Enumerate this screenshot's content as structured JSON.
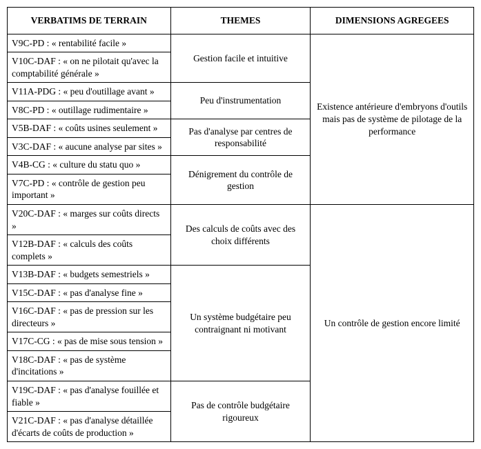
{
  "headers": {
    "col1": "VERBATIMS DE TERRAIN",
    "col2": "THEMES",
    "col3": "DIMENSIONS AGREGEES"
  },
  "rows": {
    "v9c": "V9C-PD : « rentabilité facile »",
    "v10c": "V10C-DAF : « on ne pilotait qu'avec la comptabilité générale »",
    "v11a": "V11A-PDG : « peu d'outillage avant »",
    "v8c": "V8C-PD : « outillage rudimentaire »",
    "v5b": "V5B-DAF : « coûts usines seulement »",
    "v3c": "V3C-DAF : « aucune analyse par sites »",
    "v4b": "V4B-CG : « culture du statu quo »",
    "v7c": "V7C-PD : « contrôle de gestion peu important »",
    "v20c": "V20C-DAF : « marges sur coûts directs »",
    "v12b": "V12B-DAF : « calculs des coûts complets »",
    "v13b": "V13B-DAF : « budgets semestriels »",
    "v15c": "V15C-DAF : « pas d'analyse fine »",
    "v16c": "V16C-DAF : « pas de pression sur les directeurs »",
    "v17c": "V17C-CG : « pas de mise sous tension »",
    "v18c": "V18C-DAF : « pas de système d'incitations »",
    "v19c": "V19C-DAF : « pas d'analyse fouillée et fiable »",
    "v21c": "V21C-DAF : « pas d'analyse détaillée d'écarts de coûts de production »"
  },
  "themes": {
    "t1": "Gestion facile et intuitive",
    "t2": "Peu d'instrumentation",
    "t3": "Pas d'analyse par centres de responsabilité",
    "t4": "Dénigrement du contrôle de gestion",
    "t5": "Des calculs de coûts avec des choix différents",
    "t6": "Un système budgétaire peu contraignant ni motivant",
    "t7": "Pas de contrôle budgétaire rigoureux"
  },
  "dimensions": {
    "d1": "Existence antérieure d'embryons d'outils mais pas de système de pilotage de la performance",
    "d2": "Un contrôle de gestion encore limité"
  }
}
